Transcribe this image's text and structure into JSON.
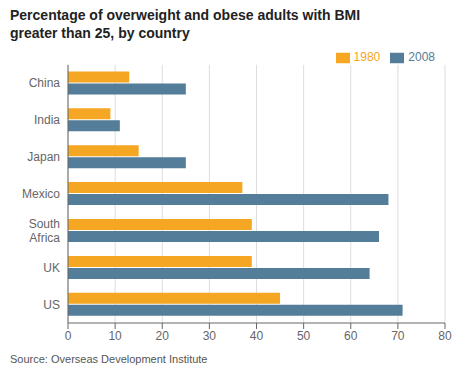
{
  "chart_data": {
    "type": "bar",
    "orientation": "horizontal",
    "title": "Percentage of overweight and obese adults with BMI\ngreater than 25, by country",
    "annotations": [
      "Source: Overseas Development Institute"
    ],
    "categories": [
      "US",
      "UK",
      "South\nAfrica",
      "Mexico",
      "Japan",
      "India",
      "China"
    ],
    "series": [
      {
        "name": "1980",
        "color": "#F5A623",
        "values": [
          45,
          39,
          39,
          37,
          15,
          9,
          13
        ]
      },
      {
        "name": "2008",
        "color": "#537D99",
        "values": [
          71,
          64,
          66,
          68,
          25,
          11,
          25
        ]
      }
    ],
    "xlim": [
      0,
      80
    ],
    "xticks": [
      0,
      10,
      20,
      30,
      40,
      50,
      60,
      70,
      80
    ],
    "grid": true,
    "legend": "upper right"
  }
}
